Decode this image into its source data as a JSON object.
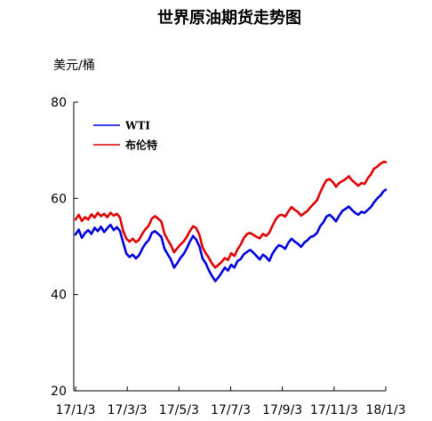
{
  "chart_data": {
    "type": "line",
    "title": "世界原油期货走势图",
    "unit_label": "美元/桶",
    "ylim": [
      20,
      80
    ],
    "yticks": [
      20,
      40,
      60,
      80
    ],
    "x_tick_labels": [
      "17/1/3",
      "17/3/3",
      "17/5/3",
      "17/7/3",
      "17/9/3",
      "17/11/3",
      "18/1/3"
    ],
    "legend_position": "top-left",
    "grid": false,
    "series": [
      {
        "name": "WTI",
        "color": "#0000dd",
        "points": [
          [
            0,
            52.5
          ],
          [
            3,
            53.5
          ],
          [
            6,
            51.8
          ],
          [
            9,
            52.8
          ],
          [
            12,
            53.4
          ],
          [
            15,
            52.6
          ],
          [
            18,
            53.9
          ],
          [
            21,
            53.2
          ],
          [
            24,
            54.1
          ],
          [
            27,
            53.0
          ],
          [
            30,
            53.8
          ],
          [
            33,
            54.5
          ],
          [
            36,
            53.4
          ],
          [
            39,
            54.0
          ],
          [
            42,
            53.2
          ],
          [
            45,
            50.8
          ],
          [
            48,
            48.5
          ],
          [
            51,
            47.8
          ],
          [
            54,
            48.3
          ],
          [
            57,
            47.5
          ],
          [
            60,
            48.2
          ],
          [
            63,
            49.5
          ],
          [
            66,
            50.6
          ],
          [
            69,
            51.3
          ],
          [
            72,
            52.8
          ],
          [
            75,
            53.2
          ],
          [
            78,
            52.6
          ],
          [
            81,
            52.0
          ],
          [
            84,
            49.5
          ],
          [
            87,
            48.4
          ],
          [
            90,
            47.3
          ],
          [
            93,
            45.6
          ],
          [
            96,
            46.5
          ],
          [
            99,
            47.6
          ],
          [
            102,
            48.4
          ],
          [
            105,
            49.6
          ],
          [
            108,
            51.0
          ],
          [
            111,
            52.2
          ],
          [
            114,
            51.4
          ],
          [
            117,
            50.0
          ],
          [
            120,
            47.5
          ],
          [
            123,
            46.5
          ],
          [
            126,
            45.0
          ],
          [
            129,
            43.8
          ],
          [
            132,
            42.8
          ],
          [
            135,
            43.6
          ],
          [
            138,
            44.6
          ],
          [
            141,
            45.6
          ],
          [
            144,
            45.0
          ],
          [
            147,
            46.2
          ],
          [
            150,
            45.6
          ],
          [
            153,
            47.0
          ],
          [
            156,
            47.4
          ],
          [
            159,
            48.4
          ],
          [
            162,
            48.9
          ],
          [
            165,
            49.3
          ],
          [
            168,
            48.7
          ],
          [
            171,
            48.0
          ],
          [
            174,
            47.3
          ],
          [
            177,
            48.3
          ],
          [
            180,
            47.8
          ],
          [
            183,
            47.0
          ],
          [
            186,
            48.5
          ],
          [
            189,
            49.5
          ],
          [
            192,
            50.3
          ],
          [
            195,
            50.0
          ],
          [
            198,
            49.5
          ],
          [
            201,
            50.8
          ],
          [
            204,
            51.6
          ],
          [
            207,
            51.0
          ],
          [
            210,
            50.6
          ],
          [
            213,
            49.9
          ],
          [
            216,
            50.8
          ],
          [
            219,
            51.3
          ],
          [
            222,
            52.0
          ],
          [
            225,
            52.2
          ],
          [
            228,
            52.8
          ],
          [
            231,
            54.2
          ],
          [
            234,
            55.0
          ],
          [
            237,
            56.2
          ],
          [
            240,
            56.6
          ],
          [
            243,
            56.0
          ],
          [
            246,
            55.2
          ],
          [
            249,
            56.4
          ],
          [
            252,
            57.4
          ],
          [
            255,
            57.8
          ],
          [
            258,
            58.3
          ],
          [
            261,
            57.6
          ],
          [
            264,
            57.0
          ],
          [
            267,
            56.6
          ],
          [
            270,
            57.2
          ],
          [
            273,
            57.0
          ],
          [
            276,
            57.6
          ],
          [
            279,
            58.2
          ],
          [
            282,
            59.2
          ],
          [
            285,
            60.0
          ],
          [
            288,
            60.6
          ],
          [
            291,
            61.5
          ],
          [
            293,
            61.8
          ]
        ]
      },
      {
        "name": "布伦特",
        "color": "#e00000",
        "points": [
          [
            0,
            55.6
          ],
          [
            3,
            56.6
          ],
          [
            6,
            55.3
          ],
          [
            9,
            56.1
          ],
          [
            12,
            55.6
          ],
          [
            15,
            56.7
          ],
          [
            18,
            56.0
          ],
          [
            21,
            57.0
          ],
          [
            24,
            56.3
          ],
          [
            27,
            56.8
          ],
          [
            30,
            56.1
          ],
          [
            33,
            57.0
          ],
          [
            36,
            56.4
          ],
          [
            39,
            56.8
          ],
          [
            42,
            56.0
          ],
          [
            45,
            53.2
          ],
          [
            48,
            51.6
          ],
          [
            51,
            51.0
          ],
          [
            54,
            51.6
          ],
          [
            57,
            50.9
          ],
          [
            60,
            51.4
          ],
          [
            63,
            52.6
          ],
          [
            66,
            53.6
          ],
          [
            69,
            54.3
          ],
          [
            72,
            55.8
          ],
          [
            75,
            56.3
          ],
          [
            78,
            55.8
          ],
          [
            81,
            55.2
          ],
          [
            84,
            52.6
          ],
          [
            87,
            51.4
          ],
          [
            90,
            50.3
          ],
          [
            93,
            48.8
          ],
          [
            96,
            49.6
          ],
          [
            99,
            50.4
          ],
          [
            102,
            51.0
          ],
          [
            105,
            52.0
          ],
          [
            108,
            53.2
          ],
          [
            111,
            54.2
          ],
          [
            114,
            53.8
          ],
          [
            117,
            52.4
          ],
          [
            120,
            49.8
          ],
          [
            123,
            48.6
          ],
          [
            126,
            47.6
          ],
          [
            129,
            46.4
          ],
          [
            132,
            45.6
          ],
          [
            135,
            46.2
          ],
          [
            138,
            46.8
          ],
          [
            141,
            47.6
          ],
          [
            144,
            47.2
          ],
          [
            147,
            48.6
          ],
          [
            150,
            48.0
          ],
          [
            153,
            49.4
          ],
          [
            156,
            50.4
          ],
          [
            159,
            51.8
          ],
          [
            162,
            52.6
          ],
          [
            165,
            52.8
          ],
          [
            168,
            52.4
          ],
          [
            171,
            52.0
          ],
          [
            174,
            51.7
          ],
          [
            177,
            52.6
          ],
          [
            180,
            52.2
          ],
          [
            183,
            52.9
          ],
          [
            186,
            54.3
          ],
          [
            189,
            55.6
          ],
          [
            192,
            56.4
          ],
          [
            195,
            56.6
          ],
          [
            198,
            56.2
          ],
          [
            201,
            57.3
          ],
          [
            204,
            58.2
          ],
          [
            207,
            57.6
          ],
          [
            210,
            57.2
          ],
          [
            213,
            56.4
          ],
          [
            216,
            56.9
          ],
          [
            219,
            57.4
          ],
          [
            222,
            58.2
          ],
          [
            225,
            58.9
          ],
          [
            228,
            59.6
          ],
          [
            231,
            61.2
          ],
          [
            234,
            62.6
          ],
          [
            237,
            63.8
          ],
          [
            240,
            64.0
          ],
          [
            243,
            63.4
          ],
          [
            246,
            62.4
          ],
          [
            249,
            63.2
          ],
          [
            252,
            63.6
          ],
          [
            255,
            64.0
          ],
          [
            258,
            64.6
          ],
          [
            261,
            63.8
          ],
          [
            264,
            63.2
          ],
          [
            267,
            62.6
          ],
          [
            270,
            63.2
          ],
          [
            273,
            63.0
          ],
          [
            276,
            64.2
          ],
          [
            279,
            65.0
          ],
          [
            282,
            66.2
          ],
          [
            285,
            66.6
          ],
          [
            288,
            67.2
          ],
          [
            291,
            67.6
          ],
          [
            293,
            67.5
          ]
        ]
      }
    ]
  }
}
